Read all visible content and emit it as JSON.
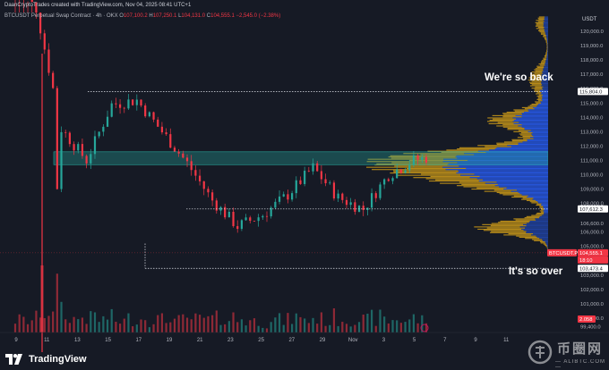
{
  "header": {
    "author_line": "DaanCryptoTrades created with TradingView.com, Nov 04, 2025 08:41 UTC+1",
    "symbol": "BTCUSDT",
    "contract": "Perpetual Swap Contract · 4h · OKX",
    "ohlc": {
      "o_label": "O",
      "o": "107,100.2",
      "h_label": "H",
      "h": "107,250.1",
      "l_label": "L",
      "l": "104,131.0",
      "c_label": "C",
      "c": "104,555.1",
      "change": "−2,545.0 (−2.38%)"
    }
  },
  "axis": {
    "currency": "USDT",
    "price_labels": [
      "120,000.0",
      "119,000.0",
      "118,000.0",
      "117,000.0",
      "116,000.0",
      "115,000.0",
      "114,000.0",
      "113,000.0",
      "112,000.0",
      "111,000.0",
      "110,000.0",
      "109,000.0",
      "108,000.0",
      "107,800.0",
      "106,600.0",
      "106,000.0",
      "105,000.0",
      "104,000.0",
      "103,000.0",
      "102,000.0",
      "101,000.0",
      "100,000.0",
      "99,400.0"
    ],
    "date_labels": [
      "9",
      "11",
      "13",
      "15",
      "17",
      "19",
      "21",
      "23",
      "25",
      "27",
      "29",
      "Nov",
      "3",
      "5",
      "7",
      "9",
      "11"
    ]
  },
  "badges": {
    "top_level": "115,804.0",
    "mid_level": "107,612.3",
    "bottom_level": "103,473.4",
    "symbol_tag": "BTCUSDT.P",
    "last_price": "104,555.1",
    "countdown": "18:10",
    "volume": "2.058"
  },
  "annotations": {
    "top": "We're so back",
    "bottom": "It's so over"
  },
  "branding": {
    "logo_text": "TradingView",
    "watermark": "币圈网",
    "watermark_sub": "— ALIBTC.COM —"
  },
  "colors": {
    "background": "#161a25",
    "up": "#26a69a",
    "down": "#f23645",
    "profile_blue": "#2962ff",
    "profile_gold": "#d4a017",
    "zone": "#26a69a"
  },
  "chart_data": {
    "type": "candlestick",
    "timeframe": "4h",
    "x_range": [
      "Oct 8",
      "Nov 11"
    ],
    "ylim": [
      99000,
      121000
    ],
    "levels": [
      115804.0,
      107612.3,
      103473.4
    ],
    "zone": [
      110700,
      111600
    ],
    "daily_closes": [
      {
        "date": "Oct 8",
        "close": 123300
      },
      {
        "date": "Oct 9",
        "close": 121600
      },
      {
        "date": "Oct 10",
        "close": 113200
      },
      {
        "date": "Oct 11",
        "close": 111000
      },
      {
        "date": "Oct 12",
        "close": 114900
      },
      {
        "date": "Oct 13",
        "close": 115200
      },
      {
        "date": "Oct 14",
        "close": 113000
      },
      {
        "date": "Oct 15",
        "close": 110800
      },
      {
        "date": "Oct 16",
        "close": 108200
      },
      {
        "date": "Oct 17",
        "close": 106400
      },
      {
        "date": "Oct 18",
        "close": 107200
      },
      {
        "date": "Oct 19",
        "close": 108600
      },
      {
        "date": "Oct 20",
        "close": 110500
      },
      {
        "date": "Oct 21",
        "close": 108400
      },
      {
        "date": "Oct 22",
        "close": 107600
      },
      {
        "date": "Oct 23",
        "close": 110000
      },
      {
        "date": "Oct 24",
        "close": 111000
      },
      {
        "date": "Oct 25",
        "close": 111400
      },
      {
        "date": "Oct 26",
        "close": 113800
      },
      {
        "date": "Oct 27",
        "close": 114100
      },
      {
        "date": "Oct 28",
        "close": 112900
      },
      {
        "date": "Oct 29",
        "close": 110100
      },
      {
        "date": "Oct 30",
        "close": 108300
      },
      {
        "date": "Oct 31",
        "close": 109600
      },
      {
        "date": "Nov 1",
        "close": 110100
      },
      {
        "date": "Nov 2",
        "close": 110500
      },
      {
        "date": "Nov 3",
        "close": 106500
      },
      {
        "date": "Nov 4",
        "close": 104555
      }
    ]
  }
}
